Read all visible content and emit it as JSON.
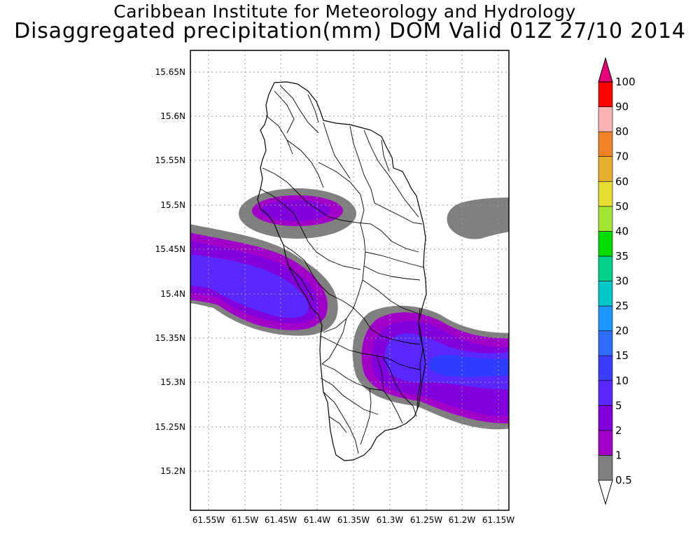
{
  "title": {
    "line1": "Caribbean Institute for Meteorology and Hydrology",
    "line2": "Disaggregated precipitation(mm) DOM Valid 01Z 27/10 2014"
  },
  "map": {
    "x_ticks": [
      "61.55W",
      "61.5W",
      "61.45W",
      "61.4W",
      "61.35W",
      "61.3W",
      "61.25W",
      "61.2W",
      "61.15W"
    ],
    "y_ticks": [
      "15.65N",
      "15.6N",
      "15.55N",
      "15.5N",
      "15.45N",
      "15.4N",
      "15.35N",
      "15.3N",
      "15.25N",
      "15.2N"
    ],
    "extent": {
      "lon_min": -61.573,
      "lon_max": -61.134,
      "lat_min": 15.156,
      "lat_max": 15.677
    }
  },
  "colorbar": {
    "levels": [
      "0.5",
      "1",
      "2",
      "5",
      "10",
      "15",
      "20",
      "25",
      "30",
      "35",
      "40",
      "50",
      "60",
      "70",
      "80",
      "90",
      "100"
    ],
    "colors": [
      "#808080",
      "#a000c8",
      "#8200dc",
      "#5a28ff",
      "#3c3cff",
      "#2e6cff",
      "#1e96ff",
      "#00c8c8",
      "#00d28c",
      "#00dc00",
      "#a0e632",
      "#e6dc32",
      "#e6af2d",
      "#f08228",
      "#fab4b4",
      "#ff0000",
      "#ff4040",
      "#e6007a"
    ]
  }
}
